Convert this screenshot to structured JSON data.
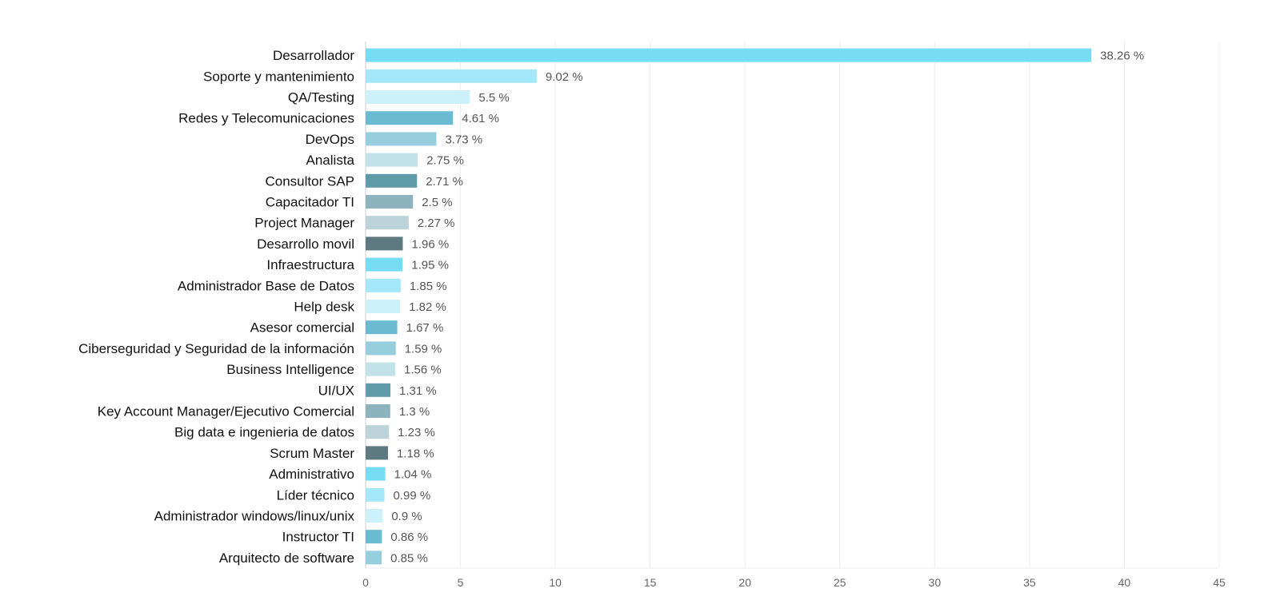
{
  "chart_data": {
    "type": "bar",
    "orientation": "horizontal",
    "title": "",
    "xlabel": "",
    "ylabel": "",
    "xlim": [
      0,
      45
    ],
    "xticks": [
      0,
      5,
      10,
      15,
      20,
      25,
      30,
      35,
      40,
      45
    ],
    "grid": true,
    "value_suffix": " %",
    "categories": [
      "Desarrollador",
      "Soporte y mantenimiento",
      "QA/Testing",
      "Redes y Telecomunicaciones",
      "DevOps",
      "Analista",
      "Consultor SAP",
      "Capacitador TI",
      "Project Manager",
      "Desarrollo movil",
      "Infraestructura",
      "Administrador Base de Datos",
      "Help desk",
      "Asesor comercial",
      "Ciberseguridad y Seguridad de la información",
      "Business Intelligence",
      "UI/UX",
      "Key Account Manager/Ejecutivo Comercial",
      "Big data e ingenieria de datos",
      "Scrum Master",
      "Administrativo",
      "Líder técnico",
      "Administrador windows/linux/unix",
      "Instructor TI",
      "Arquitecto de software"
    ],
    "values": [
      38.26,
      9.02,
      5.5,
      4.61,
      3.73,
      2.75,
      2.71,
      2.5,
      2.27,
      1.96,
      1.95,
      1.85,
      1.82,
      1.67,
      1.59,
      1.56,
      1.31,
      1.3,
      1.23,
      1.18,
      1.04,
      0.99,
      0.9,
      0.86,
      0.85
    ],
    "value_labels": [
      "38.26 %",
      "9.02 %",
      "5.5 %",
      "4.61 %",
      "3.73 %",
      "2.75 %",
      "2.71 %",
      "2.5 %",
      "2.27 %",
      "1.96 %",
      "1.95 %",
      "1.85 %",
      "1.82 %",
      "1.67 %",
      "1.59 %",
      "1.56 %",
      "1.31 %",
      "1.3 %",
      "1.23 %",
      "1.18 %",
      "1.04 %",
      "0.99 %",
      "0.9 %",
      "0.86 %",
      "0.85 %"
    ],
    "colors": [
      "#76dcf4",
      "#a3e7f8",
      "#cdf1fb",
      "#6abbd2",
      "#97cedd",
      "#c2e2ea",
      "#5e9aa8",
      "#8db4be",
      "#bcd3d9",
      "#5d7a80",
      "#76dcf4",
      "#a3e7f8",
      "#cdf1fb",
      "#6abbd2",
      "#97cedd",
      "#c2e2ea",
      "#5e9aa8",
      "#8db4be",
      "#bcd3d9",
      "#5d7a80",
      "#76dcf4",
      "#a3e7f8",
      "#cdf1fb",
      "#6abbd2",
      "#97cedd"
    ]
  }
}
